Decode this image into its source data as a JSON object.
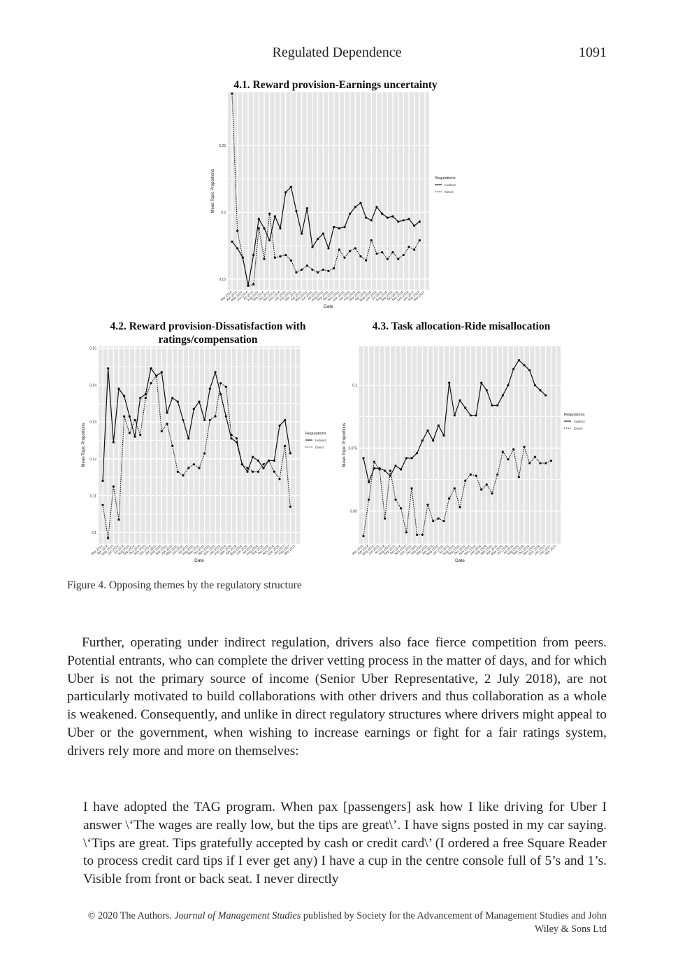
{
  "header": {
    "running_title": "Regulated Dependence",
    "page_number": "1091"
  },
  "figure": {
    "caption": "Figure 4. Opposing themes by the regulatory structure",
    "colors": {
      "panel_bg": "#e5e5e5",
      "grid": "#ffffff",
      "line": "#111111"
    }
  },
  "chart_data": [
    {
      "id": "4.1",
      "type": "line",
      "title": "4.1. Reward provision-Earnings uncertainty",
      "xlabel": "Date",
      "ylabel": "Mean Topic Proportions",
      "yticks": [
        0.15,
        0.2,
        0.25
      ],
      "ylim": [
        0.142,
        0.29
      ],
      "legend": {
        "title": "Regulations",
        "entries": [
          "Indirect",
          "Direct"
        ],
        "placement": "right"
      },
      "x": [
        "Mar 2014",
        "Apr 2014",
        "May 2014",
        "Jun 2014",
        "Jul 2014",
        "Aug 2014",
        "Sep 2014",
        "Oct 2014",
        "Nov 2014",
        "Dec 2014",
        "Jan 2015",
        "Feb 2015",
        "Mar 2015",
        "Apr 2015",
        "May 2015",
        "Jun 2015",
        "Jul 2015",
        "Aug 2015",
        "Sep 2015",
        "Oct 2015",
        "Nov 2015",
        "Dec 2015",
        "Jan 2016",
        "Feb 2016",
        "Mar 2016",
        "Apr 2016",
        "May 2016",
        "Jun 2016",
        "Jul 2016",
        "Aug 2016",
        "Sep 2016",
        "Oct 2016",
        "Nov 2016",
        "Dec 2016",
        "Jan 2017",
        "Feb 2017",
        "Mar 2017"
      ],
      "series": [
        {
          "name": "Indirect",
          "style": "solid",
          "values": [
            0.178,
            0.173,
            0.166,
            0.145,
            0.168,
            0.195,
            0.188,
            0.179,
            0.197,
            0.188,
            0.215,
            0.219,
            0.201,
            0.184,
            0.203,
            0.174,
            0.18,
            0.184,
            0.173,
            0.189,
            0.188,
            0.189,
            0.199,
            0.204,
            0.207,
            0.196,
            0.194,
            0.204,
            0.199,
            0.196,
            0.197,
            0.193,
            0.194,
            0.195,
            0.19,
            0.193,
            null
          ]
        },
        {
          "name": "Direct",
          "style": "dotted",
          "values": [
            0.289,
            0.186,
            0.166,
            0.145,
            0.146,
            0.188,
            0.165,
            0.199,
            0.166,
            0.167,
            0.168,
            0.164,
            0.155,
            0.157,
            0.16,
            0.157,
            0.155,
            0.157,
            0.156,
            0.158,
            0.172,
            0.166,
            0.171,
            0.173,
            0.167,
            0.164,
            0.179,
            0.169,
            0.17,
            0.165,
            0.17,
            0.165,
            0.168,
            0.174,
            0.172,
            0.179,
            null
          ]
        }
      ]
    },
    {
      "id": "4.2",
      "type": "line",
      "title": "4.2. Reward provision-Dissatisfaction with ratings/compensation",
      "xlabel": "Date",
      "ylabel": "Mean Topic Proportions",
      "yticks": [
        0.1,
        0.11,
        0.12,
        0.13,
        0.14,
        0.15
      ],
      "ylim": [
        0.097,
        0.1505
      ],
      "legend": {
        "title": "Regulations",
        "entries": [
          "Indirect",
          "Direct"
        ],
        "placement": "right"
      },
      "x": [
        "Mar 2014",
        "Apr 2014",
        "May 2014",
        "Jun 2014",
        "Jul 2014",
        "Aug 2014",
        "Sep 2014",
        "Oct 2014",
        "Nov 2014",
        "Dec 2014",
        "Jan 2015",
        "Feb 2015",
        "Mar 2015",
        "Apr 2015",
        "May 2015",
        "Jun 2015",
        "Jul 2015",
        "Aug 2015",
        "Sep 2015",
        "Oct 2015",
        "Nov 2015",
        "Dec 2015",
        "Jan 2016",
        "Feb 2016",
        "Mar 2016",
        "Apr 2016",
        "May 2016",
        "Jun 2016",
        "Jul 2016",
        "Aug 2016",
        "Sep 2016",
        "Oct 2016",
        "Nov 2016",
        "Dec 2016",
        "Jan 2017",
        "Feb 2017",
        "Mar 2017"
      ],
      "series": [
        {
          "name": "Indirect",
          "style": "solid",
          "values": [
            0.114,
            0.1445,
            0.1245,
            0.139,
            0.137,
            0.1315,
            0.126,
            0.1365,
            0.1375,
            0.1445,
            0.1425,
            0.1435,
            0.1325,
            0.1365,
            0.1355,
            0.1305,
            0.1255,
            0.1335,
            0.1355,
            0.1305,
            0.139,
            0.1435,
            0.1375,
            0.1315,
            0.1255,
            0.1245,
            0.1185,
            0.1165,
            0.1205,
            0.1195,
            0.1175,
            0.1195,
            0.1195,
            0.129,
            0.1305,
            0.1215,
            null
          ]
        },
        {
          "name": "Direct",
          "style": "dotted",
          "values": [
            0.1075,
            0.0985,
            0.1125,
            0.1035,
            0.1315,
            0.127,
            0.1305,
            0.1265,
            0.1365,
            0.1405,
            0.1425,
            0.1275,
            0.1295,
            0.1235,
            0.1165,
            0.1155,
            0.1175,
            0.1185,
            0.1175,
            0.1215,
            0.1305,
            0.1315,
            0.1405,
            0.1395,
            0.1265,
            0.1255,
            0.1185,
            0.1175,
            0.1165,
            0.1165,
            0.1185,
            0.1195,
            0.1165,
            0.1145,
            0.1235,
            0.107,
            null
          ]
        }
      ]
    },
    {
      "id": "4.3",
      "type": "line",
      "title": "4.3. Task allocation-Ride misallocation",
      "xlabel": "Date",
      "ylabel": "Mean Topic Proportions",
      "yticks": [
        0.05,
        0.075,
        0.1
      ],
      "ylim": [
        0.037,
        0.1155
      ],
      "legend": {
        "title": "Regulations",
        "entries": [
          "Indirect",
          "Direct"
        ],
        "placement": "right"
      },
      "x": [
        "Mar 2014",
        "Apr 2014",
        "May 2014",
        "Jun 2014",
        "Jul 2014",
        "Aug 2014",
        "Sep 2014",
        "Oct 2014",
        "Nov 2014",
        "Dec 2014",
        "Jan 2015",
        "Feb 2015",
        "Mar 2015",
        "Apr 2015",
        "May 2015",
        "Jun 2015",
        "Jul 2015",
        "Aug 2015",
        "Sep 2015",
        "Oct 2015",
        "Nov 2015",
        "Dec 2015",
        "Jan 2016",
        "Feb 2016",
        "Mar 2016",
        "Apr 2016",
        "May 2016",
        "Jun 2016",
        "Jul 2016",
        "Aug 2016",
        "Sep 2016",
        "Oct 2016",
        "Nov 2016",
        "Dec 2016",
        "Jan 2017",
        "Feb 2017",
        "Mar 2017"
      ],
      "series": [
        {
          "name": "Indirect",
          "style": "solid",
          "values": [
            0.071,
            0.0615,
            0.067,
            0.067,
            0.066,
            0.064,
            0.068,
            0.0665,
            0.071,
            0.071,
            0.073,
            0.078,
            0.082,
            0.078,
            0.084,
            0.08,
            0.101,
            0.088,
            0.094,
            0.091,
            0.088,
            0.088,
            0.101,
            0.098,
            0.092,
            0.092,
            0.096,
            0.1,
            0.1065,
            0.11,
            0.108,
            0.106,
            0.1,
            0.098,
            0.096,
            null,
            null
          ]
        },
        {
          "name": "Direct",
          "style": "dotted",
          "values": [
            0.04,
            0.0545,
            0.0695,
            0.0665,
            0.047,
            0.066,
            0.0545,
            0.051,
            0.0415,
            0.059,
            0.0405,
            0.0405,
            0.0525,
            0.046,
            0.047,
            0.046,
            0.055,
            0.059,
            0.0515,
            0.062,
            0.0645,
            0.064,
            0.0585,
            0.0605,
            0.057,
            0.0645,
            0.0735,
            0.0705,
            0.0745,
            0.0635,
            0.0755,
            0.069,
            0.0715,
            0.069,
            0.069,
            0.07,
            null
          ]
        }
      ]
    }
  ],
  "body": {
    "paragraph1": "Further, operating under indirect regulation, drivers also face fierce competition from peers. Potential entrants, who can complete the driver vetting process in the matter of days, and for which Uber is not the primary source of income (Senior Uber Representative, 2 July 2018), are not particularly motivated to build collaborations with other drivers and thus collaboration as a whole is weakened. Consequently, and unlike in direct regulatory structures where drivers might appeal to Uber or the government, when wishing to increase earnings or fight for a fair ratings system, drivers rely more and more on themselves:",
    "quote": "I have adopted the TAG program. When pax [passengers] ask how I like driving for Uber I answer \\‘The wages are really low, but the tips are great\\’. I have signs posted in my car saying. \\‘Tips are great. Tips gratefully accepted by cash or credit card\\’ (I ordered a free Square Reader to process credit card tips if I ever get any) I have a cup in the centre console full of 5’s and 1’s. Visible from front or back seat. I never directly"
  },
  "footer": {
    "prefix": "© 2020 The Authors.",
    "journal": "Journal of Management Studies",
    "suffix": "published by Society for the Advancement of Management Studies and John Wiley & Sons Ltd"
  }
}
